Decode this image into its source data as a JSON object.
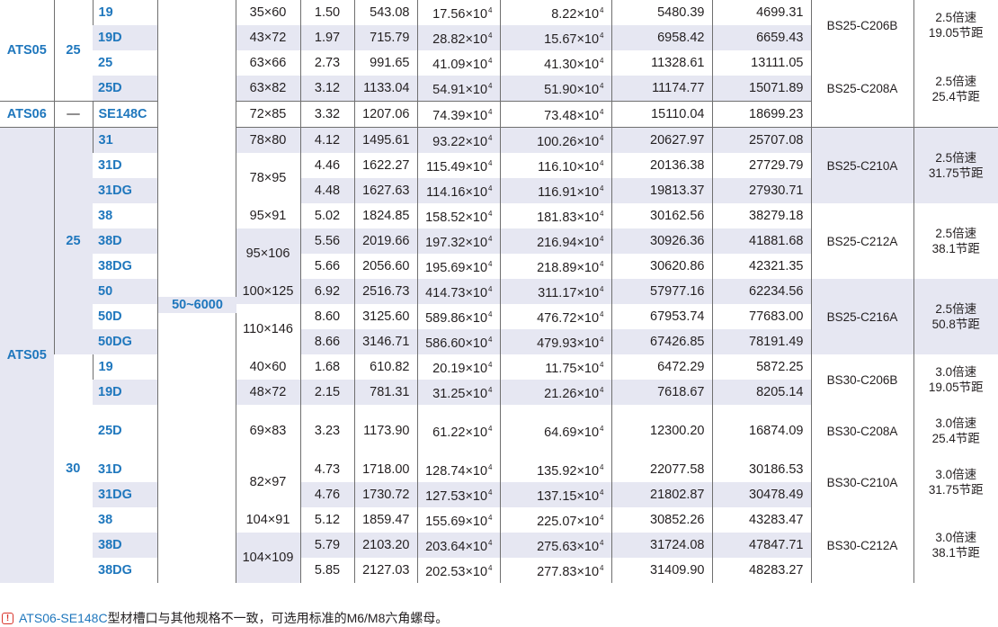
{
  "series": {
    "ats05": "ATS05",
    "ats06": "ATS06"
  },
  "sizes": {
    "s25": "25",
    "s30": "30",
    "dash": "—"
  },
  "length_range": "50~6000",
  "codes": [
    "19",
    "19D",
    "25",
    "25D",
    "SE148C",
    "31",
    "31D",
    "31DG",
    "38",
    "38D",
    "38DG",
    "50",
    "50D",
    "50DG",
    "19",
    "19D",
    "25D",
    "31D",
    "31DG",
    "38",
    "38D",
    "38DG"
  ],
  "dims": [
    "35×60",
    "43×72",
    "63×66",
    "63×82",
    "72×85",
    "78×80",
    "78×95",
    "95×91",
    "95×106",
    "100×125",
    "110×146",
    "40×60",
    "48×72",
    "69×83",
    "82×97",
    "104×91",
    "104×109"
  ],
  "weights": [
    "1.50",
    "1.97",
    "2.73",
    "3.12",
    "3.32",
    "4.12",
    "4.46",
    "4.48",
    "5.02",
    "5.56",
    "5.66",
    "6.92",
    "8.60",
    "8.66",
    "1.68",
    "2.15",
    "3.23",
    "4.73",
    "4.76",
    "5.12",
    "5.79",
    "5.85"
  ],
  "areas": [
    "543.08",
    "715.79",
    "991.65",
    "1133.04",
    "1207.06",
    "1495.61",
    "1622.27",
    "1627.63",
    "1824.85",
    "2019.66",
    "2056.60",
    "2516.73",
    "3125.60",
    "3146.71",
    "610.82",
    "781.31",
    "1173.90",
    "1718.00",
    "1730.72",
    "1859.47",
    "2103.20",
    "2127.03"
  ],
  "ix": [
    "17.56×10",
    "28.82×10",
    "41.09×10",
    "54.91×10",
    "74.39×10",
    "93.22×10",
    "115.49×10",
    "114.16×10",
    "158.52×10",
    "197.32×10",
    "195.69×10",
    "414.73×10",
    "589.86×10",
    "586.60×10",
    "20.19×10",
    "31.25×10",
    "61.22×10",
    "128.74×10",
    "127.53×10",
    "155.69×10",
    "203.64×10",
    "202.53×10"
  ],
  "iy": [
    "8.22×10",
    "15.67×10",
    "41.30×10",
    "51.90×10",
    "73.48×10",
    "100.26×10",
    "116.10×10",
    "116.91×10",
    "181.83×10",
    "216.94×10",
    "218.89×10",
    "311.17×10",
    "476.72×10",
    "479.93×10",
    "11.75×10",
    "21.26×10",
    "64.69×10",
    "135.92×10",
    "137.15×10",
    "225.07×10",
    "275.63×10",
    "277.83×10"
  ],
  "exponent": "4",
  "zx": [
    "5480.39",
    "6958.42",
    "11328.61",
    "11174.77",
    "15110.04",
    "20627.97",
    "20136.38",
    "19813.37",
    "30162.56",
    "30926.36",
    "30620.86",
    "57977.16",
    "67953.74",
    "67426.85",
    "6472.29",
    "7618.67",
    "12300.20",
    "22077.58",
    "21802.87",
    "30852.26",
    "31724.08",
    "31409.90"
  ],
  "zy": [
    "4699.31",
    "6659.43",
    "13111.05",
    "15071.89",
    "18699.23",
    "25707.08",
    "27729.79",
    "27930.71",
    "38279.18",
    "41881.68",
    "42321.35",
    "62234.56",
    "77683.00",
    "78191.49",
    "5872.25",
    "8205.14",
    "16874.09",
    "30186.53",
    "30478.49",
    "43283.47",
    "47847.71",
    "48283.27"
  ],
  "wheels": [
    "BS25-C206B",
    "BS25-C208A",
    "BS25-C210A",
    "BS25-C212A",
    "BS25-C216A",
    "BS30-C206B",
    "BS30-C208A",
    "BS30-C210A",
    "BS30-C212A"
  ],
  "notes": [
    [
      "2.5倍速",
      "19.05节距"
    ],
    [
      "2.5倍速",
      "25.4节距"
    ],
    [
      "2.5倍速",
      "31.75节距"
    ],
    [
      "2.5倍速",
      "38.1节距"
    ],
    [
      "2.5倍速",
      "50.8节距"
    ],
    [
      "3.0倍速",
      "19.05节距"
    ],
    [
      "3.0倍速",
      "25.4节距"
    ],
    [
      "3.0倍速",
      "31.75节距"
    ],
    [
      "3.0倍速",
      "38.1节距"
    ]
  ],
  "footnote": {
    "icon": "exclamation-icon",
    "code": "ATS06-SE148C",
    "text": "型材槽口与其他规格不一致，可选用标准的M6/M8六角螺母。"
  },
  "colors": {
    "accent": "#1f77bd",
    "stripe": "#e6e7f2",
    "warning": "#d9342b"
  }
}
